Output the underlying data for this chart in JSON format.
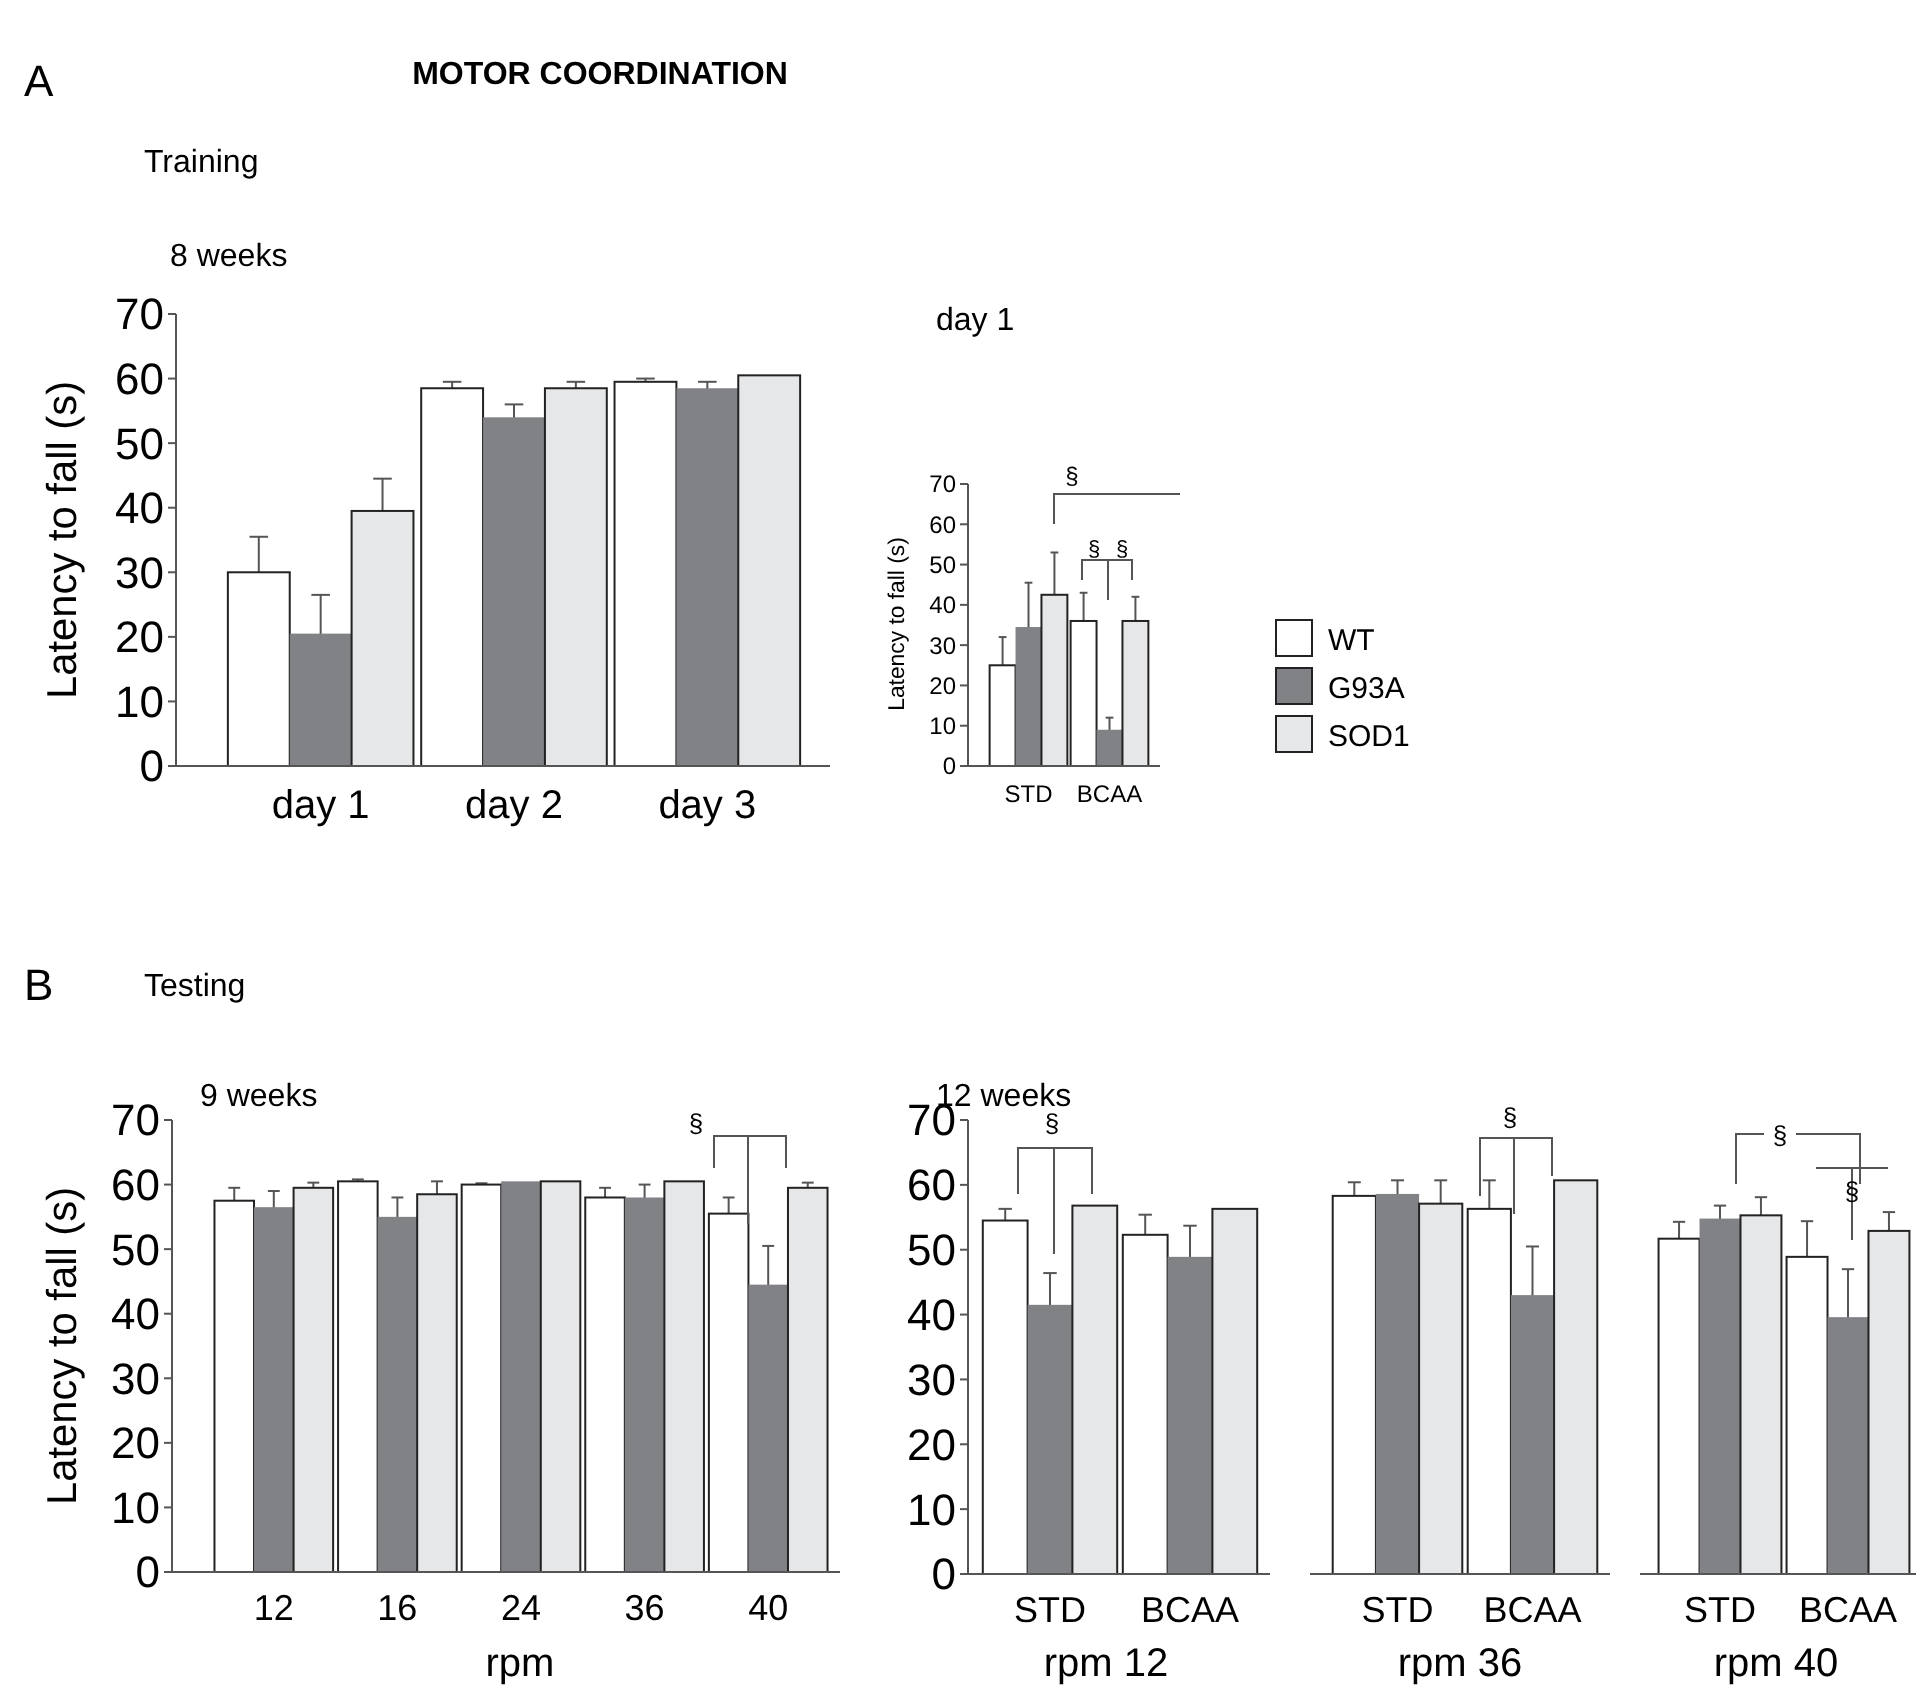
{
  "chart_data": [
    {
      "type": "bar",
      "title": "8 weeks",
      "ylabel": "Latency to fall (s)",
      "annotations": [
        "A",
        "MOTOR COORDINATION",
        "Training"
      ],
      "categories": [
        "day 1",
        "day 2",
        "day 3"
      ],
      "ylim": [
        0,
        70
      ],
      "yticks": [
        0,
        10,
        20,
        30,
        40,
        50,
        60,
        70
      ],
      "legend": false,
      "series": [
        {
          "color": "#ffffff",
          "values": [
            30,
            58.5,
            59.5
          ],
          "errors": [
            5.5,
            1,
            0.5
          ]
        },
        {
          "color": "#808285",
          "values": [
            20.5,
            54,
            58.5
          ],
          "errors": [
            6,
            2,
            1
          ]
        },
        {
          "color": "#e6e7e8",
          "values": [
            39.5,
            58.5,
            60.5
          ],
          "errors": [
            5,
            1,
            null
          ]
        }
      ]
    },
    {
      "type": "bar",
      "title": "day 1",
      "ylabel": "Latency to fall (s)",
      "annotations": [
        "§",
        "§",
        "§"
      ],
      "categories": [
        "STD",
        "BCAA"
      ],
      "ylim": [
        0,
        70
      ],
      "yticks": [
        0,
        10,
        20,
        30,
        40,
        50,
        60,
        70
      ],
      "legend": "right",
      "series": [
        {
          "name": "WT",
          "color": "#ffffff",
          "values": [
            25,
            36
          ],
          "errors": [
            7,
            7
          ]
        },
        {
          "name": "G93A",
          "color": "#808285",
          "values": [
            34.5,
            9
          ],
          "errors": [
            11,
            3
          ]
        },
        {
          "name": "SOD1",
          "color": "#e6e7e8",
          "values": [
            42.5,
            36
          ],
          "errors": [
            10.5,
            6
          ]
        }
      ]
    },
    {
      "type": "bar",
      "title": "9 weeks",
      "ylabel": "Latency to fall (s)",
      "xlabel": "rpm",
      "annotations": [
        "B",
        "Testing",
        "§"
      ],
      "categories": [
        "12",
        "16",
        "24",
        "36",
        "40"
      ],
      "ylim": [
        0,
        70
      ],
      "yticks": [
        0,
        10,
        20,
        30,
        40,
        50,
        60,
        70
      ],
      "legend": false,
      "series": [
        {
          "color": "#ffffff",
          "values": [
            57.5,
            60.5,
            60,
            58,
            55.5
          ],
          "errors": [
            2,
            0.3,
            0.2,
            1.5,
            2.5
          ]
        },
        {
          "color": "#808285",
          "values": [
            56.5,
            55,
            60.5,
            58,
            44.5
          ],
          "errors": [
            2.5,
            3,
            null,
            2,
            6
          ]
        },
        {
          "color": "#e6e7e8",
          "values": [
            59.5,
            58.5,
            60.5,
            60.5,
            59.5
          ],
          "errors": [
            0.8,
            2,
            null,
            null,
            0.8
          ]
        }
      ]
    },
    {
      "type": "bar",
      "title": "12 weeks",
      "xlabel": "rpm 12",
      "annotations": [
        "§"
      ],
      "categories": [
        "STD",
        "BCAA"
      ],
      "ylim": [
        0,
        70
      ],
      "yticks": [
        0,
        10,
        20,
        30,
        40,
        50,
        60,
        70
      ],
      "legend": false,
      "series": [
        {
          "color": "#ffffff",
          "values": [
            54.5,
            52.3
          ],
          "errors": [
            1.8,
            3.1
          ]
        },
        {
          "color": "#808285",
          "values": [
            41.5,
            48.9
          ],
          "errors": [
            4.9,
            4.8
          ]
        },
        {
          "color": "#e6e7e8",
          "values": [
            56.8,
            56.3
          ],
          "errors": [
            null,
            null
          ]
        }
      ]
    },
    {
      "type": "bar",
      "xlabel": "rpm 36",
      "annotations": [
        "§"
      ],
      "categories": [
        "STD",
        "BCAA"
      ],
      "ylim": [
        0,
        70
      ],
      "tick_labels": "x",
      "legend": false,
      "series": [
        {
          "color": "#ffffff",
          "values": [
            58.3,
            56.3
          ],
          "errors": [
            2.1,
            4.4
          ]
        },
        {
          "color": "#808285",
          "values": [
            58.6,
            43
          ],
          "errors": [
            2.1,
            7.5
          ]
        },
        {
          "color": "#e6e7e8",
          "values": [
            57.1,
            60.7
          ],
          "errors": [
            3.6,
            null
          ]
        }
      ]
    },
    {
      "type": "bar",
      "xlabel": "rpm 40",
      "annotations": [
        "§",
        "§"
      ],
      "categories": [
        "STD",
        "BCAA"
      ],
      "ylim": [
        0,
        70
      ],
      "tick_labels": "x",
      "legend": false,
      "series": [
        {
          "color": "#ffffff",
          "values": [
            51.7,
            48.9
          ],
          "errors": [
            2.6,
            5.5
          ]
        },
        {
          "color": "#808285",
          "values": [
            54.8,
            39.6
          ],
          "errors": [
            2,
            7.4
          ]
        },
        {
          "color": "#e6e7e8",
          "values": [
            55.3,
            52.9
          ],
          "errors": [
            2.8,
            2.9
          ]
        }
      ]
    }
  ]
}
